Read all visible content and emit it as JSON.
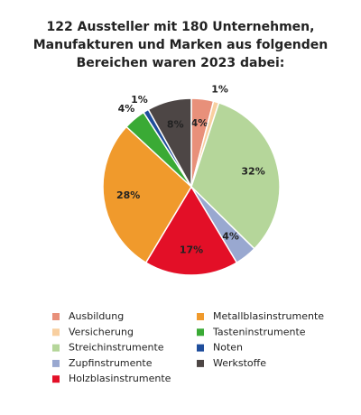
{
  "chart_data": {
    "type": "pie",
    "title_lines": [
      "122 Aussteller mit 180 Unternehmen,",
      "Manufakturen und Marken aus folgenden",
      "Bereichen waren 2023 dabei:"
    ],
    "categories": [
      "Ausbildung",
      "Versicherung",
      "Streichinstrumente",
      "Zupfinstrumente",
      "Holzblasinstrumente",
      "Metallblasinstrumente",
      "Tasteninstrumente",
      "Noten",
      "Werkstoffe"
    ],
    "values": [
      4,
      1,
      32,
      4,
      17,
      28,
      4,
      1,
      8
    ],
    "value_labels": [
      "4%",
      "1%",
      "32%",
      "4%",
      "17%",
      "28%",
      "4%",
      "1%",
      "8%"
    ],
    "colors": [
      "#e8907a",
      "#f8cfa0",
      "#b5d69a",
      "#99a8d0",
      "#e30f27",
      "#f09a2c",
      "#3aaa35",
      "#1f4e9c",
      "#4d4645"
    ]
  }
}
